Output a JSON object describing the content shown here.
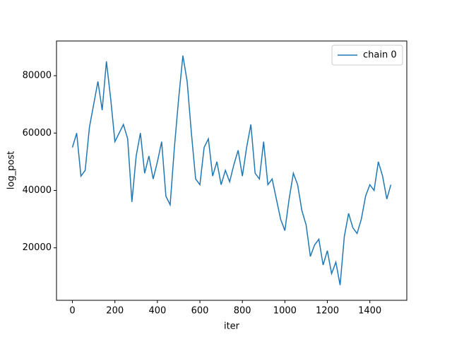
{
  "chart_data": {
    "type": "line",
    "x_label": "iter",
    "y_label": "log_post",
    "x": [
      0,
      20,
      40,
      60,
      80,
      100,
      120,
      140,
      160,
      180,
      200,
      220,
      240,
      260,
      280,
      300,
      320,
      340,
      360,
      380,
      400,
      420,
      440,
      460,
      480,
      500,
      520,
      540,
      560,
      580,
      600,
      620,
      640,
      660,
      680,
      700,
      720,
      740,
      760,
      780,
      800,
      820,
      840,
      860,
      880,
      900,
      920,
      940,
      960,
      980,
      1000,
      1020,
      1040,
      1060,
      1080,
      1100,
      1120,
      1140,
      1160,
      1180,
      1200,
      1220,
      1240,
      1260,
      1280,
      1300,
      1320,
      1340,
      1360,
      1380,
      1400,
      1420,
      1440,
      1460,
      1480,
      1499
    ],
    "series": [
      {
        "name": "chain 0",
        "color": "#1f77b4",
        "values": [
          55000,
          60000,
          45000,
          47000,
          62000,
          70000,
          78000,
          68000,
          85000,
          72000,
          57000,
          60000,
          63000,
          58000,
          36000,
          52000,
          60000,
          46000,
          52000,
          44000,
          50000,
          57000,
          38000,
          35000,
          55000,
          72000,
          87000,
          78000,
          60000,
          44000,
          42000,
          55000,
          58000,
          45000,
          50000,
          42000,
          47000,
          43000,
          49000,
          54000,
          45000,
          55000,
          63000,
          46000,
          44000,
          57000,
          42000,
          44000,
          37000,
          30000,
          26000,
          37000,
          46000,
          42000,
          33000,
          28000,
          17000,
          21000,
          23000,
          14000,
          19000,
          11000,
          15000,
          7000,
          24000,
          32000,
          27000,
          25000,
          30000,
          38000,
          42000,
          40000,
          50000,
          45000,
          37000,
          42000
        ]
      }
    ],
    "xlim": [
      -75,
      1574
    ],
    "ylim": [
      1700,
      92100
    ],
    "xticks": [
      0,
      200,
      400,
      600,
      800,
      1000,
      1200,
      1400
    ],
    "yticks": [
      20000,
      40000,
      60000,
      80000
    ],
    "legend": "upper right"
  }
}
